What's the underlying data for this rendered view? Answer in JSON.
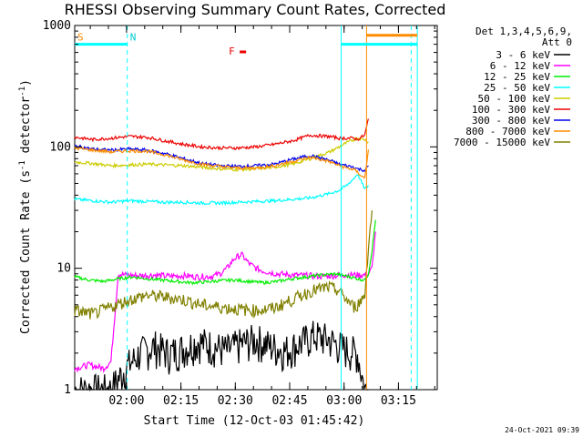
{
  "chart_data": {
    "type": "line",
    "title": "RHESSI Observing Summary Count Rates, Corrected",
    "xlabel": "Start Time (12-Oct-03 01:45:42)",
    "ylabel_main": "Corrected Count Rate (s",
    "ylabel_sup1": "-1",
    "ylabel_mid": " detector",
    "ylabel_sup2": "-1",
    "ylabel_end": ")",
    "footer_date": "24-Oct-2021 09:39",
    "y_scale": "log",
    "ylim": [
      1,
      1000
    ],
    "xlim_minutes_after_01_45_42": [
      0,
      100
    ],
    "x_ticks": [
      {
        "label": "02:00",
        "minute": 14.3
      },
      {
        "label": "02:15",
        "minute": 29.3
      },
      {
        "label": "02:30",
        "minute": 44.3
      },
      {
        "label": "02:45",
        "minute": 59.3
      },
      {
        "label": "03:00",
        "minute": 74.3
      },
      {
        "label": "03:15",
        "minute": 89.3
      }
    ],
    "y_ticks": [
      {
        "label": "1",
        "value": 1
      },
      {
        "label": "10",
        "value": 10
      },
      {
        "label": "100",
        "value": 100
      },
      {
        "label": "1000",
        "value": 1000
      }
    ],
    "legend": {
      "header1": "Det 1,3,4,5,6,9,",
      "header2": "Att 0",
      "position": "top-right",
      "entries": [
        {
          "label": "3 - 6 keV",
          "color": "#000000"
        },
        {
          "label": "6 - 12 keV",
          "color": "#ff00ff"
        },
        {
          "label": "12 - 25 keV",
          "color": "#00ee00"
        },
        {
          "label": "25 - 50 keV",
          "color": "#00ffff"
        },
        {
          "label": "50 - 100 keV",
          "color": "#cccc00"
        },
        {
          "label": "100 - 300 keV",
          "color": "#ee0000"
        },
        {
          "label": "300 - 800 keV",
          "color": "#0000ee"
        },
        {
          "label": "800 - 7000 keV",
          "color": "#ff8c00"
        },
        {
          "label": "7000 - 15000 keV",
          "color": "#808000"
        }
      ]
    },
    "series": [
      {
        "name": "3 - 6 keV",
        "color": "#000000",
        "x": [
          0,
          5,
          10,
          14,
          18,
          22,
          26,
          30,
          34,
          38,
          42,
          46,
          50,
          54,
          58,
          62,
          66,
          70,
          74,
          78,
          80,
          81
        ],
        "y": [
          1,
          1,
          1,
          1.5,
          2,
          2.3,
          2,
          2.2,
          2.5,
          2.3,
          2.1,
          2.4,
          2.6,
          2.3,
          2.1,
          2.4,
          2.8,
          2.6,
          2.2,
          2,
          1,
          1
        ]
      },
      {
        "name": "6 - 12 keV",
        "color": "#ff00ff",
        "x": [
          0,
          4,
          8,
          10,
          12,
          14,
          18,
          22,
          26,
          30,
          34,
          38,
          40,
          42,
          44,
          46,
          48,
          50,
          52,
          56,
          60,
          64,
          68,
          72,
          76,
          78,
          80,
          81,
          82,
          83
        ],
        "y": [
          1.5,
          1.6,
          1.5,
          1.7,
          9,
          8.8,
          8.7,
          8.8,
          8.6,
          8.7,
          8.5,
          8.6,
          9,
          10,
          12,
          13,
          11,
          10,
          9.5,
          9,
          8.8,
          8.7,
          8.6,
          8.7,
          8.9,
          8.8,
          8.8,
          9,
          10,
          20
        ]
      },
      {
        "name": "12 - 25 keV",
        "color": "#00ee00",
        "x": [
          0,
          4,
          8,
          12,
          16,
          20,
          24,
          28,
          32,
          36,
          40,
          44,
          48,
          52,
          56,
          60,
          64,
          68,
          72,
          76,
          78,
          80,
          81,
          82,
          83
        ],
        "y": [
          8.5,
          8,
          7.8,
          8.2,
          8.5,
          8.2,
          8,
          7.8,
          7.6,
          7.7,
          7.9,
          8,
          7.8,
          7.6,
          7.8,
          8.2,
          8.5,
          8.8,
          9,
          8.5,
          8.2,
          8,
          9,
          14,
          25
        ]
      },
      {
        "name": "25 - 50 keV",
        "color": "#00ffff",
        "x": [
          0,
          5,
          10,
          15,
          20,
          25,
          30,
          35,
          40,
          45,
          50,
          55,
          60,
          65,
          70,
          73,
          75,
          77,
          78,
          79,
          80,
          81
        ],
        "y": [
          37,
          36,
          35,
          36,
          35.5,
          35,
          35,
          34.5,
          34.5,
          35,
          35.5,
          36,
          37,
          38,
          41,
          44,
          48,
          55,
          60,
          52,
          45,
          48
        ]
      },
      {
        "name": "50 - 100 keV",
        "color": "#cccc00",
        "x": [
          0,
          5,
          10,
          15,
          20,
          25,
          30,
          35,
          40,
          45,
          50,
          55,
          60,
          65,
          70,
          73,
          75,
          77,
          78,
          80,
          81
        ],
        "y": [
          75,
          73,
          70,
          71,
          72,
          71,
          70,
          68,
          66,
          65,
          66,
          68,
          72,
          80,
          90,
          100,
          108,
          115,
          118,
          115,
          110
        ]
      },
      {
        "name": "100 - 300 keV",
        "color": "#ee0000",
        "x": [
          0,
          5,
          10,
          15,
          20,
          25,
          30,
          35,
          40,
          45,
          50,
          55,
          60,
          65,
          70,
          73,
          75,
          77,
          78,
          80,
          81
        ],
        "y": [
          120,
          115,
          118,
          122,
          120,
          112,
          105,
          100,
          98,
          98,
          100,
          105,
          112,
          125,
          122,
          118,
          118,
          118,
          115,
          125,
          170
        ]
      },
      {
        "name": "300 - 800 keV",
        "color": "#0000ee",
        "x": [
          0,
          5,
          10,
          15,
          20,
          25,
          30,
          35,
          40,
          45,
          50,
          55,
          60,
          65,
          70,
          73,
          75,
          77,
          78,
          80,
          81
        ],
        "y": [
          102,
          96,
          94,
          96,
          94,
          88,
          80,
          73,
          70,
          69,
          70,
          72,
          79,
          85,
          78,
          72,
          70,
          68,
          66,
          64,
          70
        ]
      },
      {
        "name": "800 - 7000 keV",
        "color": "#ff8c00",
        "x": [
          0,
          5,
          10,
          15,
          20,
          25,
          30,
          35,
          40,
          45,
          50,
          55,
          60,
          65,
          70,
          73,
          75,
          77,
          78,
          79,
          80,
          81
        ],
        "y": [
          98,
          94,
          91,
          93,
          92,
          86,
          78,
          72,
          69,
          67,
          67,
          70,
          76,
          82,
          76,
          70,
          67,
          65,
          62,
          58,
          55,
          95
        ]
      },
      {
        "name": "7000 - 15000 keV",
        "color": "#808000",
        "x": [
          0,
          5,
          10,
          15,
          20,
          25,
          30,
          35,
          40,
          45,
          50,
          55,
          60,
          65,
          70,
          73,
          75,
          77,
          78,
          80,
          81,
          82
        ],
        "y": [
          4.5,
          4.2,
          4.8,
          5.5,
          6,
          5.8,
          5.5,
          5,
          4.8,
          4.6,
          4.5,
          4.7,
          5.5,
          6.5,
          7,
          6.5,
          5.5,
          4.8,
          5,
          6,
          15,
          30
        ]
      }
    ],
    "markers": {
      "top_segments": [
        {
          "letter": "S",
          "letter_color": "#ff8c00",
          "x0": 0,
          "x1": 14.5,
          "color": "#00ffff",
          "y": 700
        },
        {
          "letter": "N",
          "letter_color": "#00cccc",
          "x0": 14.5,
          "x1": 14.5,
          "color": "#00ffff",
          "y": 700
        },
        {
          "letter": "",
          "letter_color": "#00ffff",
          "x0": 73.5,
          "x1": 94.5,
          "color": "#00ffff",
          "y": 700
        },
        {
          "letter": "",
          "letter_color": "#ff8c00",
          "x0": 80.5,
          "x1": 94.5,
          "color": "#ff8c00",
          "y": 830
        }
      ],
      "flare_letter": "F",
      "flare_minute": 44,
      "vertical_lines": [
        {
          "minute": 14.5,
          "color": "#00ffff",
          "dashed": true
        },
        {
          "minute": 73.5,
          "color": "#00ffff",
          "dashed": false
        },
        {
          "minute": 80.5,
          "color": "#ff8c00",
          "dashed": false
        },
        {
          "minute": 92.8,
          "color": "#00ffff",
          "dashed": true
        },
        {
          "minute": 94.5,
          "color": "#00ffff",
          "dashed": false
        }
      ]
    }
  }
}
